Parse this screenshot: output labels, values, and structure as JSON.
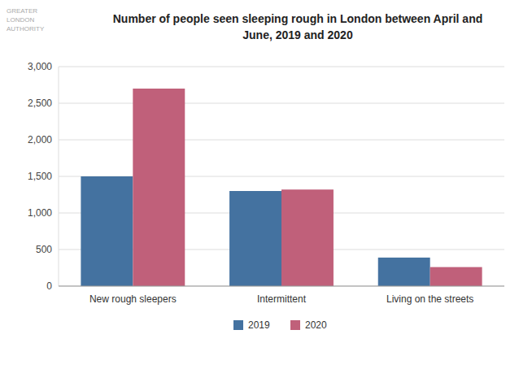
{
  "chart_data": {
    "type": "bar",
    "title": "Number of people seen sleeping rough in London between April and\nJune, 2019 and 2020",
    "annotation": "GREATER\nLONDON\nAUTHORITY",
    "categories": [
      "New rough sleepers",
      "Intermittent",
      "Living on the streets"
    ],
    "series": [
      {
        "name": "2019",
        "color": "#4472a0",
        "values": [
          1500,
          1300,
          390
        ]
      },
      {
        "name": "2020",
        "color": "#c0607a",
        "values": [
          2700,
          1320,
          260
        ]
      }
    ],
    "ylim": [
      0,
      3000
    ],
    "yticks": [
      0,
      500,
      {
        "value": 1000,
        "label": "1,000"
      },
      {
        "value": 1500,
        "label": "1,500"
      },
      {
        "value": 2000,
        "label": "2,000"
      },
      {
        "value": 2500,
        "label": "2,500"
      },
      {
        "value": 3000,
        "label": "3,000"
      }
    ],
    "grid": true,
    "legend": "bottom"
  }
}
